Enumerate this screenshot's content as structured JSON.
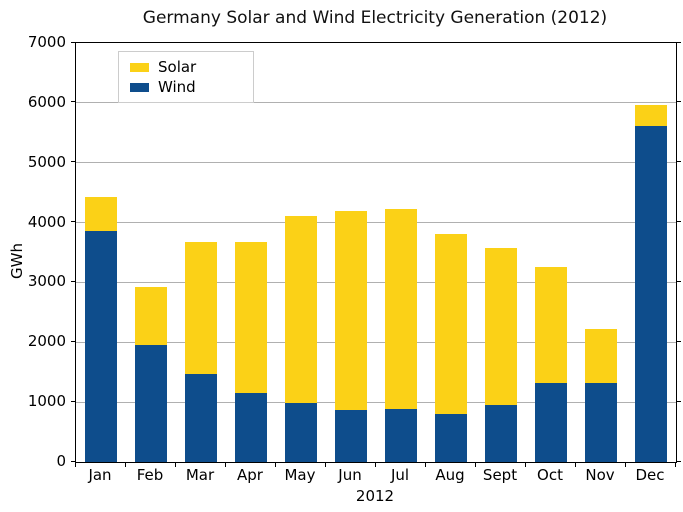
{
  "chart_data": {
    "type": "bar",
    "stacked": true,
    "title": "Germany Solar and Wind Electricity Generation (2012)",
    "xlabel": "2012",
    "ylabel": "GWh",
    "ylim": [
      0,
      7000
    ],
    "yticks": [
      0,
      1000,
      2000,
      3000,
      4000,
      5000,
      6000,
      7000
    ],
    "grid": "horizontal",
    "legend_position": "upper-left",
    "categories": [
      "Jan",
      "Feb",
      "Mar",
      "Apr",
      "May",
      "Jun",
      "Jul",
      "Aug",
      "Sept",
      "Oct",
      "Nov",
      "Dec"
    ],
    "series": [
      {
        "name": "Solar",
        "color": "#FBD117",
        "values": [
          560,
          970,
          2200,
          2530,
          3120,
          3330,
          3330,
          3010,
          2620,
          1940,
          900,
          350
        ]
      },
      {
        "name": "Wind",
        "color": "#0E4D8C",
        "values": [
          3860,
          1950,
          1470,
          1150,
          990,
          870,
          890,
          800,
          950,
          1320,
          1320,
          5620
        ]
      }
    ],
    "stack_bottom_to_top": [
      "Wind",
      "Solar"
    ],
    "totals": [
      4430,
      2920,
      3670,
      3680,
      4110,
      4200,
      4220,
      3810,
      3570,
      3260,
      2220,
      5970
    ]
  },
  "colors": {
    "background": "#ffffff",
    "grid": "#b0b0b0",
    "axis": "#000000",
    "legend_border": "#cccccc",
    "text": "#000000"
  }
}
